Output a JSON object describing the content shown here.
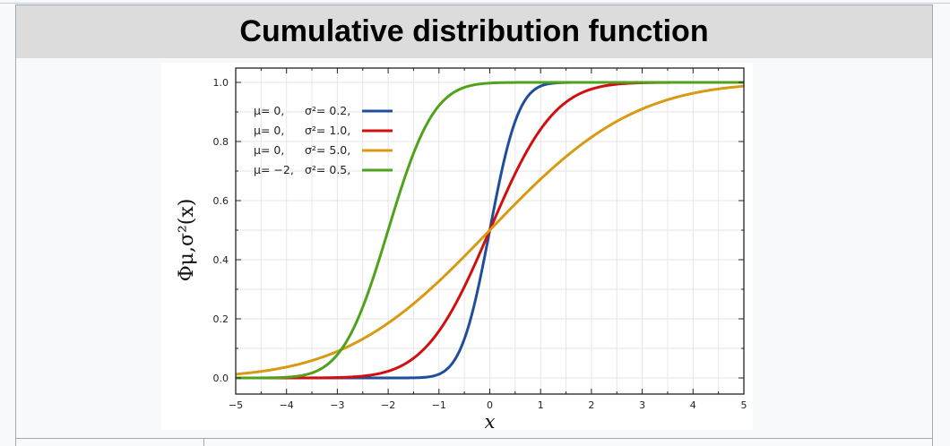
{
  "page_title": "Cumulative distribution function",
  "colors": {
    "header_bg": "#dcdcdc",
    "border": "#a2a9b1",
    "grid": "#e6e6e6"
  },
  "chart_data": {
    "type": "line",
    "xlabel": "x",
    "ylabel": "Φμ,σ²(x)",
    "xlim": [
      -5,
      5
    ],
    "ylim": [
      0,
      1
    ],
    "x_ticks": [
      -5,
      -4,
      -3,
      -2,
      -1,
      0,
      1,
      2,
      3,
      4,
      5
    ],
    "x_tick_labels": [
      "−5",
      "−4",
      "−3",
      "−2",
      "−1",
      "0",
      "1",
      "2",
      "3",
      "4",
      "5"
    ],
    "y_ticks": [
      0,
      0.2,
      0.4,
      0.6,
      0.8,
      1.0
    ],
    "y_tick_labels": [
      "0.0",
      "0.2",
      "0.4",
      "0.6",
      "0.8",
      "1.0"
    ],
    "grid": true,
    "legend_position": "top-left",
    "series": [
      {
        "mu_label": "μ= 0,",
        "var_label": "σ²= 0.2,",
        "mu": 0,
        "variance": 0.2,
        "color": "#1f4e9c"
      },
      {
        "mu_label": "μ= 0,",
        "var_label": "σ²= 1.0,",
        "mu": 0,
        "variance": 1.0,
        "color": "#d10f0f"
      },
      {
        "mu_label": "μ= 0,",
        "var_label": "σ²= 5.0,",
        "mu": 0,
        "variance": 5.0,
        "color": "#d89a13"
      },
      {
        "mu_label": "μ= −2,",
        "var_label": "σ²= 0.5,",
        "mu": -2,
        "variance": 0.5,
        "color": "#4ea31a"
      }
    ]
  }
}
